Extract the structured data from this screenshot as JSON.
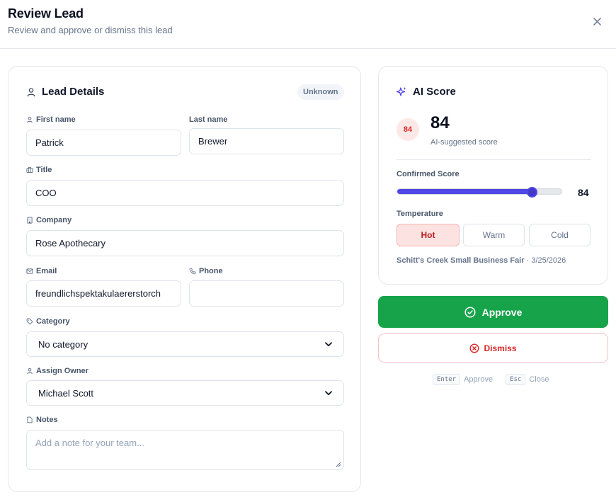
{
  "header": {
    "title": "Review Lead",
    "subtitle": "Review and approve or dismiss this lead"
  },
  "lead_details": {
    "title": "Lead Details",
    "badge": "Unknown",
    "fields": {
      "first_name": {
        "label": "First name",
        "value": "Patrick"
      },
      "last_name": {
        "label": "Last name",
        "value": "Brewer"
      },
      "title": {
        "label": "Title",
        "value": "COO"
      },
      "company": {
        "label": "Company",
        "value": "Rose Apothecary"
      },
      "email": {
        "label": "Email",
        "value": "freundlichspektakulaererstorch"
      },
      "phone": {
        "label": "Phone",
        "value": ""
      },
      "category": {
        "label": "Category",
        "value": "No category"
      },
      "owner": {
        "label": "Assign Owner",
        "value": "Michael Scott"
      },
      "notes": {
        "label": "Notes",
        "placeholder": "Add a note for your team..."
      }
    }
  },
  "ai_score": {
    "title": "AI Score",
    "score": "84",
    "score_caption": "AI-suggested score",
    "confirmed_label": "Confirmed Score",
    "confirmed_value": "84",
    "confirmed_fraction": 0.84,
    "temperature_label": "Temperature",
    "temperature_options": [
      "Hot",
      "Warm",
      "Cold"
    ],
    "temperature_selected": "Hot",
    "event_name": "Schitt's Creek Small Business Fair",
    "event_separator": "·",
    "event_date": "3/25/2026"
  },
  "actions": {
    "approve_label": "Approve",
    "dismiss_label": "Dismiss"
  },
  "shortcuts": {
    "approve_key": "Enter",
    "approve_text": "Approve",
    "close_key": "Esc",
    "close_text": "Close"
  },
  "colors": {
    "approve": "#16a34a",
    "dismiss": "#dc2626",
    "accent": "#4f46e5",
    "hot": "#b91c1c"
  }
}
